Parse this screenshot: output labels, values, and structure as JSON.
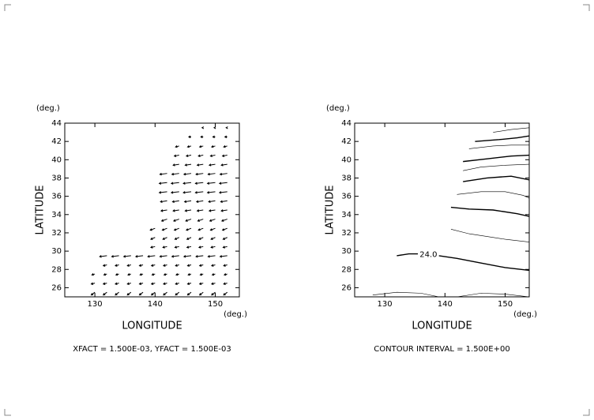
{
  "chart_data": [
    {
      "type": "quiver",
      "xlabel": "LONGITUDE",
      "ylabel": "LATITUDE",
      "x_unit": "(deg.)",
      "y_unit": "(deg.)",
      "note": "XFACT = 1.500E-03, YFACT = 1.500E-03",
      "color": "#000000",
      "xlim": [
        125,
        154
      ],
      "ylim": [
        25,
        44
      ],
      "xticks": [
        130,
        140,
        150
      ],
      "yticks": [
        26,
        28,
        30,
        32,
        34,
        36,
        38,
        40,
        42,
        44
      ],
      "rows": [
        {
          "y": 25.5,
          "x": [
            130,
            132,
            134,
            136,
            138,
            140,
            142,
            144,
            146,
            148,
            150,
            152
          ],
          "u": -0.6,
          "v": -0.3
        },
        {
          "y": 26.5,
          "x": [
            130,
            132,
            134,
            136,
            138,
            140,
            142,
            144,
            146,
            148,
            150,
            152
          ],
          "u": -0.6,
          "v": -0.1
        },
        {
          "y": 27.5,
          "x": [
            130,
            132,
            134,
            136,
            138,
            140,
            142,
            144,
            146,
            148,
            150,
            152
          ],
          "u": -0.5,
          "v": -0.1
        },
        {
          "y": 28.5,
          "x": [
            132,
            134,
            136,
            138,
            140,
            142,
            144,
            146,
            148,
            150,
            152
          ],
          "u": -0.6,
          "v": -0.1
        },
        {
          "y": 29.5,
          "x": [
            132,
            134,
            136,
            138,
            140,
            142,
            144,
            146,
            148,
            150,
            152
          ],
          "u": -1.2,
          "v": -0.1
        },
        {
          "y": 30.5,
          "x": [
            140,
            142,
            144,
            146,
            148,
            150,
            152
          ],
          "u": -0.7,
          "v": -0.1
        },
        {
          "y": 31.5,
          "x": [
            140,
            142,
            144,
            146,
            148,
            150,
            152
          ],
          "u": -0.7,
          "v": -0.2
        },
        {
          "y": 32.5,
          "x": [
            140,
            142,
            144,
            146,
            148,
            150,
            152
          ],
          "u": -0.8,
          "v": -0.2
        },
        {
          "y": 33.5,
          "x": [
            142,
            144,
            146,
            148,
            150,
            152
          ],
          "u": -0.9,
          "v": -0.2
        },
        {
          "y": 34.5,
          "x": [
            142,
            144,
            146,
            148,
            150,
            152
          ],
          "u": -1.0,
          "v": -0.1
        },
        {
          "y": 35.5,
          "x": [
            142,
            144,
            146,
            148,
            150,
            152
          ],
          "u": -1.1,
          "v": -0.1
        },
        {
          "y": 36.5,
          "x": [
            142,
            144,
            146,
            148,
            150,
            152
          ],
          "u": -1.3,
          "v": -0.1
        },
        {
          "y": 37.5,
          "x": [
            142,
            144,
            146,
            148,
            150,
            152
          ],
          "u": -1.3,
          "v": -0.1
        },
        {
          "y": 38.5,
          "x": [
            142,
            144,
            146,
            148,
            150,
            152
          ],
          "u": -1.2,
          "v": -0.1
        },
        {
          "y": 39.5,
          "x": [
            144,
            146,
            148,
            150,
            152
          ],
          "u": -1.0,
          "v": -0.1
        },
        {
          "y": 40.5,
          "x": [
            144,
            146,
            148,
            150,
            152
          ],
          "u": -0.8,
          "v": -0.1
        },
        {
          "y": 41.5,
          "x": [
            144,
            146,
            148,
            150,
            152
          ],
          "u": -0.6,
          "v": -0.1
        },
        {
          "y": 42.5,
          "x": [
            146,
            148,
            150,
            152
          ],
          "u": -0.4,
          "v": 0
        },
        {
          "y": 43.5,
          "x": [
            148,
            150,
            152
          ],
          "u": -0.2,
          "v": 0
        }
      ]
    },
    {
      "type": "contour",
      "xlabel": "LONGITUDE",
      "ylabel": "LATITUDE",
      "x_unit": "(deg.)",
      "y_unit": "(deg.)",
      "note": "CONTOUR INTERVAL = 1.500E+00",
      "color": "#000000",
      "xlim": [
        125,
        154
      ],
      "ylim": [
        25,
        44
      ],
      "xticks": [
        130,
        140,
        150
      ],
      "yticks": [
        26,
        28,
        30,
        32,
        34,
        36,
        38,
        40,
        42,
        44
      ],
      "lines": [
        {
          "weight": "thin",
          "x": [
            128,
            132,
            136,
            139
          ],
          "y": [
            25.2,
            25.5,
            25.4,
            25.0
          ]
        },
        {
          "weight": "thin",
          "x": [
            142,
            146,
            150,
            154
          ],
          "y": [
            25.0,
            25.4,
            25.3,
            25.0
          ]
        },
        {
          "weight": "thick",
          "label": "24.0",
          "x": [
            132,
            134,
            135.5,
            null,
            139,
            142,
            146,
            150,
            154
          ],
          "y": [
            29.5,
            29.7,
            29.7,
            null,
            29.5,
            29.2,
            28.7,
            28.2,
            27.9
          ]
        },
        {
          "weight": "thin",
          "x": [
            141,
            144,
            147,
            150,
            154
          ],
          "y": [
            32.4,
            31.9,
            31.6,
            31.3,
            31.0
          ]
        },
        {
          "weight": "thick",
          "x": [
            141,
            144,
            148,
            152,
            154
          ],
          "y": [
            34.8,
            34.6,
            34.5,
            34.1,
            33.8
          ]
        },
        {
          "weight": "thin",
          "x": [
            142,
            146,
            150,
            153,
            154
          ],
          "y": [
            36.2,
            36.5,
            36.5,
            36.1,
            35.8
          ]
        },
        {
          "weight": "thick",
          "x": [
            143,
            147,
            151,
            154
          ],
          "y": [
            37.6,
            38.0,
            38.2,
            37.8
          ]
        },
        {
          "weight": "thin",
          "x": [
            143,
            146,
            150,
            154
          ],
          "y": [
            38.8,
            39.2,
            39.4,
            39.5
          ]
        },
        {
          "weight": "thick",
          "x": [
            143,
            147,
            151,
            154
          ],
          "y": [
            39.8,
            40.1,
            40.4,
            40.5
          ]
        },
        {
          "weight": "thin",
          "x": [
            144,
            148,
            151,
            154
          ],
          "y": [
            41.2,
            41.5,
            41.6,
            41.6
          ]
        },
        {
          "weight": "thick",
          "x": [
            145,
            149,
            152,
            154
          ],
          "y": [
            42.0,
            42.2,
            42.4,
            42.6
          ]
        },
        {
          "weight": "thin",
          "x": [
            148,
            151,
            154
          ],
          "y": [
            43.0,
            43.3,
            43.5
          ]
        }
      ]
    }
  ]
}
